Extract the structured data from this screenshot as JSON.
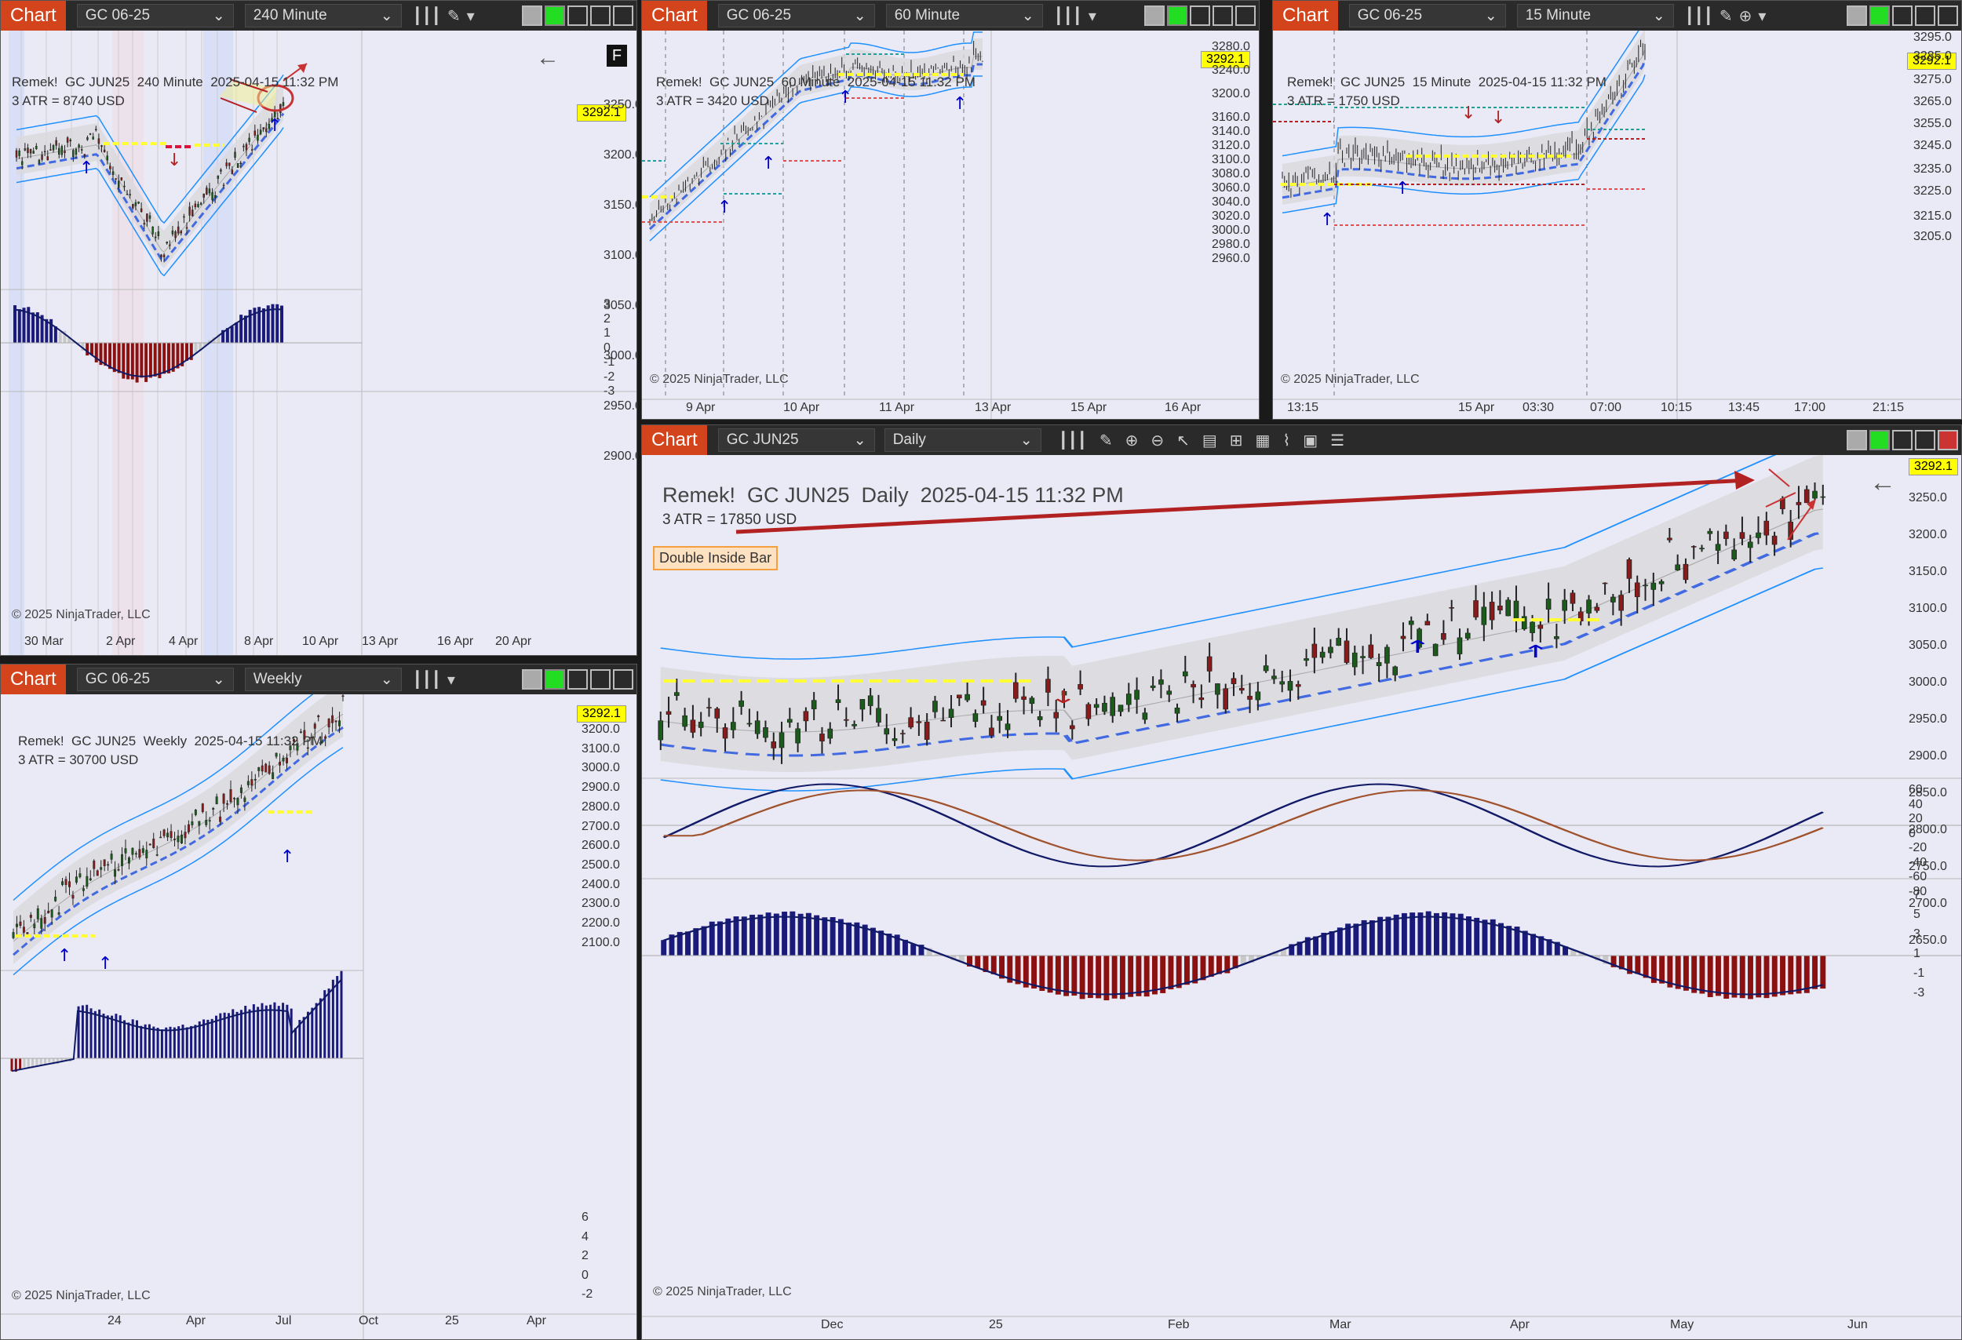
{
  "common": {
    "chart_label": "Chart",
    "copyright": "© 2025 NinjaTrader, LLC",
    "last_price": "3292.1"
  },
  "panels": [
    {
      "id": "p240",
      "instrument": "GC 06-25",
      "interval": "240 Minute",
      "title": "Remek!  GC JUN25  240 Minute  2025-04-15 11:32 PM",
      "atr": "3 ATR = 8740 USD",
      "prices": [
        "3250.0",
        "3200.0",
        "3150.0",
        "3100.0",
        "3050.0",
        "3000.0",
        "2950.0",
        "2900.0"
      ],
      "osc": [
        "3",
        "2",
        "1",
        "0",
        "-1",
        "-2",
        "-3"
      ],
      "dates": [
        "30 Mar",
        "2 Apr",
        "4 Apr",
        "8 Apr",
        "10 Apr",
        "13 Apr",
        "16 Apr",
        "20 Apr"
      ],
      "corner": "F"
    },
    {
      "id": "p60",
      "instrument": "GC 06-25",
      "interval": "60 Minute",
      "title": "Remek!  GC JUN25  60 Minute  2025-04-15 11:32 PM",
      "atr": "3 ATR = 3420 USD",
      "prices": [
        "3280.0",
        "3240.0",
        "3200.0",
        "3160.0",
        "3140.0",
        "3120.0",
        "3100.0",
        "3080.0",
        "3060.0",
        "3040.0",
        "3020.0",
        "3000.0",
        "2980.0",
        "2960.0"
      ],
      "dates": [
        "9 Apr",
        "10 Apr",
        "11 Apr",
        "13 Apr",
        "15 Apr",
        "16 Apr"
      ]
    },
    {
      "id": "p15",
      "instrument": "GC 06-25",
      "interval": "15 Minute",
      "title": "Remek!  GC JUN25  15 Minute  2025-04-15 11:32 PM",
      "atr": "3 ATR = 1750 USD",
      "prices": [
        "3295.0",
        "3285.0",
        "3275.0",
        "3265.0",
        "3255.0",
        "3245.0",
        "3235.0",
        "3225.0",
        "3215.0",
        "3205.0"
      ],
      "dates": [
        "13:15",
        "15 Apr",
        "03:30",
        "07:00",
        "10:15",
        "13:45",
        "17:00",
        "21:15"
      ]
    },
    {
      "id": "pw",
      "instrument": "GC 06-25",
      "interval": "Weekly",
      "title": "Remek!  GC JUN25  Weekly  2025-04-15 11:32 PM",
      "atr": "3 ATR = 30700 USD",
      "prices": [
        "3200.0",
        "3100.0",
        "3000.0",
        "2900.0",
        "2800.0",
        "2700.0",
        "2600.0",
        "2500.0",
        "2400.0",
        "2300.0",
        "2200.0",
        "2100.0"
      ],
      "osc": [
        "6",
        "4",
        "2",
        "0",
        "-2"
      ],
      "dates": [
        "24",
        "Apr",
        "Jul",
        "Oct",
        "25",
        "Apr"
      ]
    },
    {
      "id": "pd",
      "instrument": "GC JUN25",
      "interval": "Daily",
      "title": "Remek!  GC JUN25  Daily  2025-04-15 11:32 PM",
      "atr": "3 ATR = 17850 USD",
      "annotation": "Double Inside Bar",
      "prices": [
        "3250.0",
        "3200.0",
        "3150.0",
        "3100.0",
        "3050.0",
        "3000.0",
        "2950.0",
        "2900.0",
        "2850.0",
        "2800.0",
        "2750.0",
        "2700.0",
        "2650.0"
      ],
      "osc": [
        "60",
        "40",
        "20",
        "0",
        "-20",
        "-40",
        "-60",
        "-80"
      ],
      "osc2": [
        "7",
        "5",
        "3",
        "1",
        "-1",
        "-3"
      ],
      "dates": [
        "Dec",
        "25",
        "Feb",
        "Mar",
        "Apr",
        "May",
        "Jun"
      ]
    }
  ]
}
